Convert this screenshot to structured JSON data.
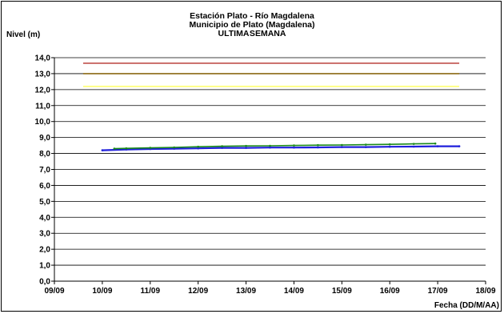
{
  "chart_data": {
    "type": "line",
    "title": "Estación Plato - Río Magdalena",
    "subtitle": "Municipio de Plato (Magdalena)",
    "subtitle2": "ULTIMA SEMANA",
    "ylabel": "Nivel (m)",
    "xlabel": "Fecha (DD/M/AA)",
    "ylim": [
      0,
      14
    ],
    "yticks": [
      "0,0",
      "1,0",
      "2,0",
      "3,0",
      "4,0",
      "5,0",
      "6,0",
      "7,0",
      "8,0",
      "9,0",
      "10,0",
      "11,0",
      "12,0",
      "13,0",
      "14,0"
    ],
    "xlim": [
      0,
      9
    ],
    "xticks": [
      "09/09",
      "10/09",
      "11/09",
      "12/09",
      "13/09",
      "14/09",
      "15/09",
      "16/09",
      "17/09",
      "18/09"
    ],
    "grid": true,
    "thresholds": [
      {
        "value": 13.65,
        "color": "#c0504d"
      },
      {
        "value": 13.0,
        "color": "#8b6914"
      },
      {
        "value": 12.2,
        "color": "#ffff66"
      }
    ],
    "threshold_x": [
      0.6,
      8.45
    ],
    "series": [
      {
        "color": "#1f1fdc",
        "width": 2.2,
        "points": [
          [
            1.0,
            8.2
          ],
          [
            1.5,
            8.25
          ],
          [
            2.0,
            8.28
          ],
          [
            2.5,
            8.3
          ],
          [
            3.0,
            8.32
          ],
          [
            3.5,
            8.35
          ],
          [
            4.0,
            8.35
          ],
          [
            4.5,
            8.37
          ],
          [
            5.0,
            8.37
          ],
          [
            5.5,
            8.38
          ],
          [
            6.0,
            8.4
          ],
          [
            6.5,
            8.4
          ],
          [
            7.0,
            8.42
          ],
          [
            7.5,
            8.43
          ],
          [
            8.0,
            8.45
          ],
          [
            8.45,
            8.45
          ]
        ]
      },
      {
        "color": "#1a8a1a",
        "width": 1.6,
        "points": [
          [
            1.25,
            8.3
          ],
          [
            1.5,
            8.32
          ],
          [
            2.0,
            8.35
          ],
          [
            2.5,
            8.38
          ],
          [
            3.0,
            8.42
          ],
          [
            3.5,
            8.45
          ],
          [
            4.0,
            8.47
          ],
          [
            4.5,
            8.48
          ],
          [
            5.0,
            8.5
          ],
          [
            5.5,
            8.52
          ],
          [
            6.0,
            8.53
          ],
          [
            6.5,
            8.55
          ],
          [
            7.0,
            8.57
          ],
          [
            7.5,
            8.6
          ],
          [
            7.95,
            8.62
          ]
        ]
      }
    ]
  }
}
